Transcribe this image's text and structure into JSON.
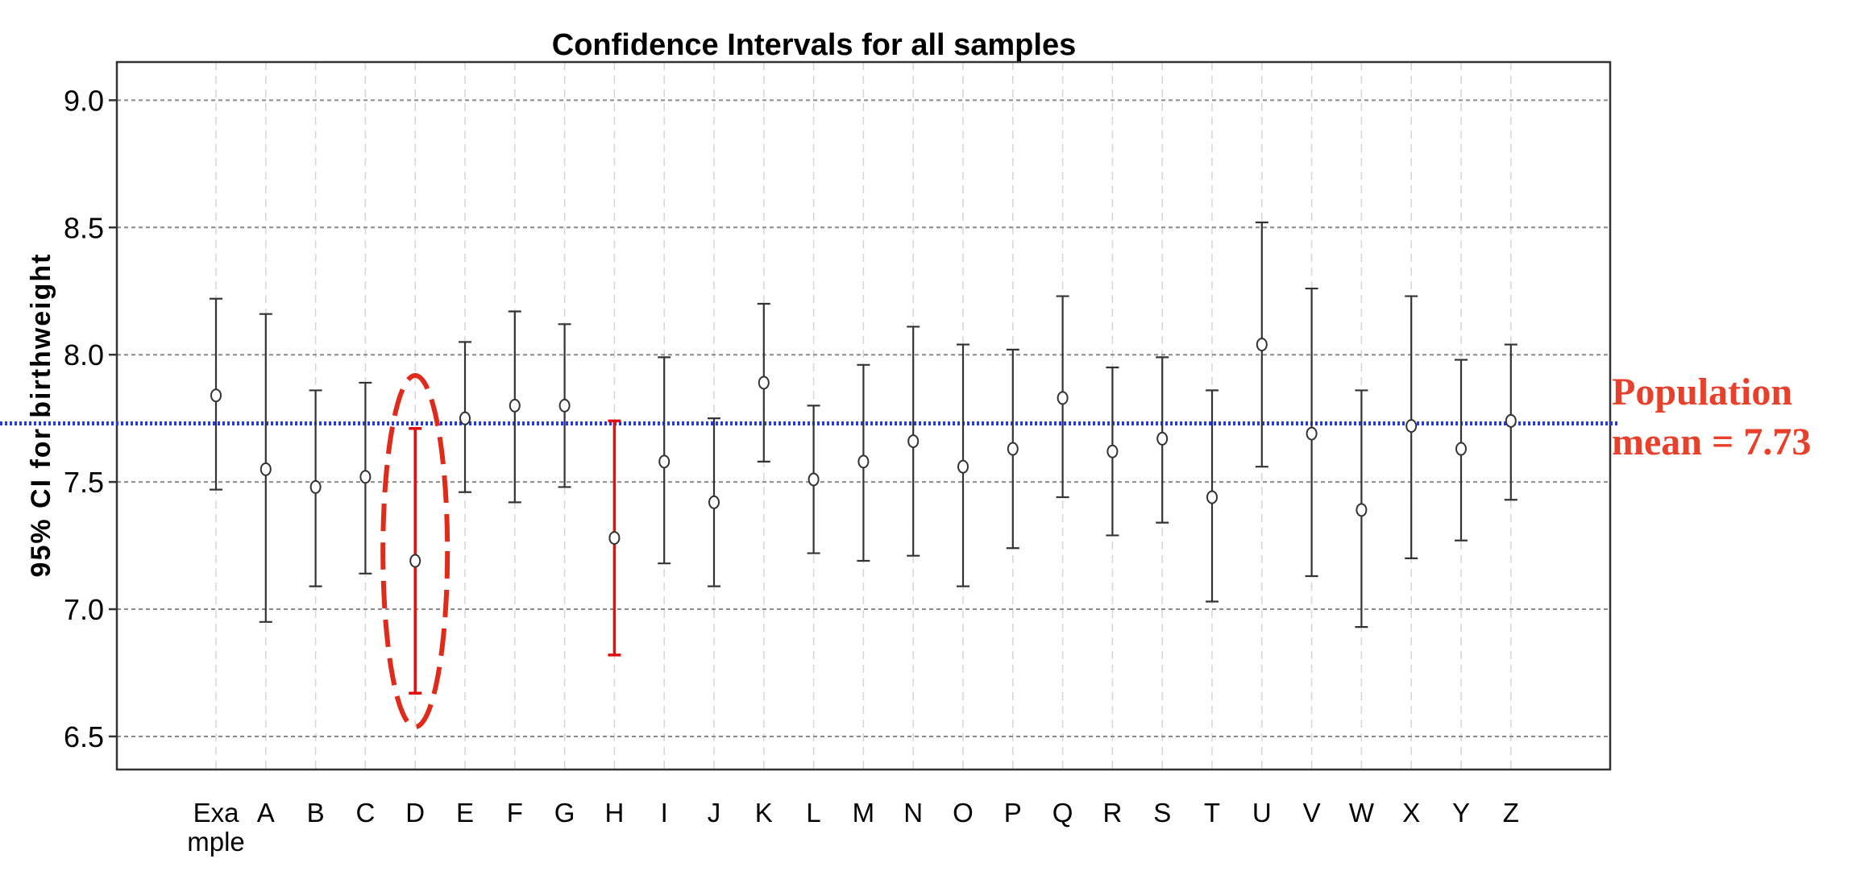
{
  "chart_data": {
    "type": "errorbar",
    "title": "Confidence Intervals for all samples",
    "xlabel": "",
    "ylabel": "95% CI for birthweight",
    "ylim": [
      6.37,
      9.15
    ],
    "yticks": [
      {
        "value": 6.5,
        "label": "6.5"
      },
      {
        "value": 7.0,
        "label": "7.0"
      },
      {
        "value": 7.5,
        "label": "7.5"
      },
      {
        "value": 8.0,
        "label": "8.0"
      },
      {
        "value": 8.5,
        "label": "8.5"
      },
      {
        "value": 9.0,
        "label": "9.0"
      }
    ],
    "grid": true,
    "reference_line": {
      "value": 7.73,
      "color": "#2a3bd0"
    },
    "annotation": {
      "lines": [
        "Population",
        "mean = 7.73"
      ],
      "color": "#e8402a"
    },
    "highlight_color": "#e01010",
    "normal_color": "#333333",
    "circled": [
      "D"
    ],
    "points": [
      {
        "label": [
          "Exa",
          "mple"
        ],
        "mean": 7.84,
        "low": 7.47,
        "high": 8.22,
        "highlight": false
      },
      {
        "label": [
          "A"
        ],
        "mean": 7.55,
        "low": 6.95,
        "high": 8.16,
        "highlight": false
      },
      {
        "label": [
          "B"
        ],
        "mean": 7.48,
        "low": 7.09,
        "high": 7.86,
        "highlight": false
      },
      {
        "label": [
          "C"
        ],
        "mean": 7.52,
        "low": 7.14,
        "high": 7.89,
        "highlight": false
      },
      {
        "label": [
          "D"
        ],
        "mean": 7.19,
        "low": 6.67,
        "high": 7.71,
        "highlight": true
      },
      {
        "label": [
          "E"
        ],
        "mean": 7.75,
        "low": 7.46,
        "high": 8.05,
        "highlight": false
      },
      {
        "label": [
          "F"
        ],
        "mean": 7.8,
        "low": 7.42,
        "high": 8.17,
        "highlight": false
      },
      {
        "label": [
          "G"
        ],
        "mean": 7.8,
        "low": 7.48,
        "high": 8.12,
        "highlight": false
      },
      {
        "label": [
          "H"
        ],
        "mean": 7.28,
        "low": 6.82,
        "high": 7.74,
        "highlight": true
      },
      {
        "label": [
          "I"
        ],
        "mean": 7.58,
        "low": 7.18,
        "high": 7.99,
        "highlight": false
      },
      {
        "label": [
          "J"
        ],
        "mean": 7.42,
        "low": 7.09,
        "high": 7.75,
        "highlight": false
      },
      {
        "label": [
          "K"
        ],
        "mean": 7.89,
        "low": 7.58,
        "high": 8.2,
        "highlight": false
      },
      {
        "label": [
          "L"
        ],
        "mean": 7.51,
        "low": 7.22,
        "high": 7.8,
        "highlight": false
      },
      {
        "label": [
          "M"
        ],
        "mean": 7.58,
        "low": 7.19,
        "high": 7.96,
        "highlight": false
      },
      {
        "label": [
          "N"
        ],
        "mean": 7.66,
        "low": 7.21,
        "high": 8.11,
        "highlight": false
      },
      {
        "label": [
          "O"
        ],
        "mean": 7.56,
        "low": 7.09,
        "high": 8.04,
        "highlight": false
      },
      {
        "label": [
          "P"
        ],
        "mean": 7.63,
        "low": 7.24,
        "high": 8.02,
        "highlight": false
      },
      {
        "label": [
          "Q"
        ],
        "mean": 7.83,
        "low": 7.44,
        "high": 8.23,
        "highlight": false
      },
      {
        "label": [
          "R"
        ],
        "mean": 7.62,
        "low": 7.29,
        "high": 7.95,
        "highlight": false
      },
      {
        "label": [
          "S"
        ],
        "mean": 7.67,
        "low": 7.34,
        "high": 7.99,
        "highlight": false
      },
      {
        "label": [
          "T"
        ],
        "mean": 7.44,
        "low": 7.03,
        "high": 7.86,
        "highlight": false
      },
      {
        "label": [
          "U"
        ],
        "mean": 8.04,
        "low": 7.56,
        "high": 8.52,
        "highlight": false
      },
      {
        "label": [
          "V"
        ],
        "mean": 7.69,
        "low": 7.13,
        "high": 8.26,
        "highlight": false
      },
      {
        "label": [
          "W"
        ],
        "mean": 7.39,
        "low": 6.93,
        "high": 7.86,
        "highlight": false
      },
      {
        "label": [
          "X"
        ],
        "mean": 7.72,
        "low": 7.2,
        "high": 8.23,
        "highlight": false
      },
      {
        "label": [
          "Y"
        ],
        "mean": 7.63,
        "low": 7.27,
        "high": 7.98,
        "highlight": false
      },
      {
        "label": [
          "Z"
        ],
        "mean": 7.74,
        "low": 7.43,
        "high": 8.04,
        "highlight": false
      }
    ]
  }
}
